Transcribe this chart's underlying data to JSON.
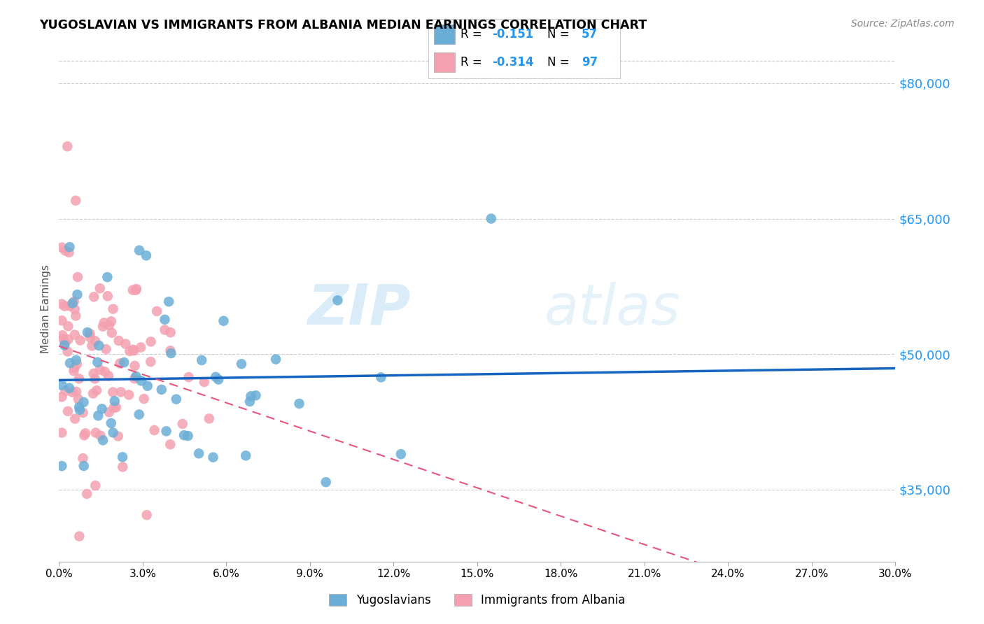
{
  "title": "YUGOSLAVIAN VS IMMIGRANTS FROM ALBANIA MEDIAN EARNINGS CORRELATION CHART",
  "source": "Source: ZipAtlas.com",
  "ylabel": "Median Earnings",
  "yticks": [
    35000,
    50000,
    65000,
    80000
  ],
  "ytick_labels": [
    "$35,000",
    "$50,000",
    "$65,000",
    "$80,000"
  ],
  "xmin": 0.0,
  "xmax": 0.3,
  "ymin": 27000,
  "ymax": 83000,
  "legend_r1_val": "-0.151",
  "legend_n1_val": "57",
  "legend_r2_val": "-0.314",
  "legend_n2_val": "97",
  "color_blue": "#6aaed6",
  "color_pink": "#f4a0b0",
  "color_trendline_blue": "#1565c0",
  "color_trendline_pink": "#e8547a",
  "watermark_zip": "ZIP",
  "watermark_atlas": "atlas",
  "legend_label1": "Yugoslavians",
  "legend_label2": "Immigrants from Albania",
  "blue_accent": "#2196f3",
  "grid_color": "#cccccc"
}
